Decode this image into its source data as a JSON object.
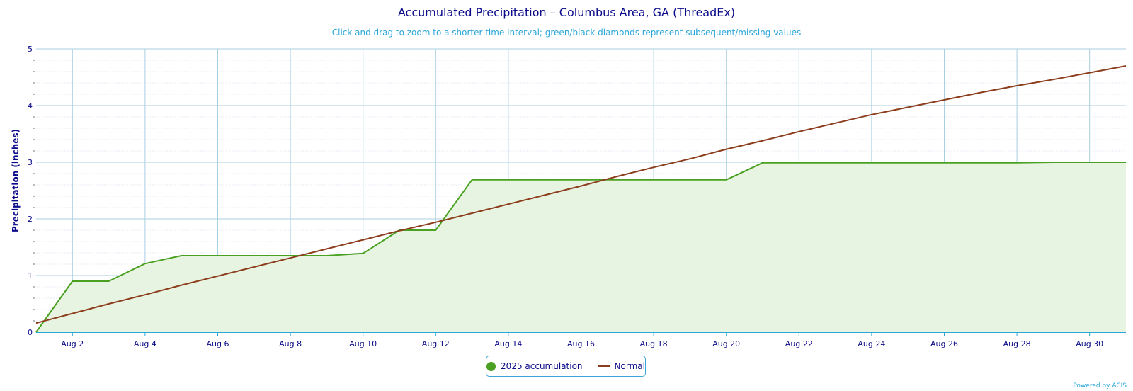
{
  "colors": {
    "accumulation": "#4aa121",
    "accumulation_fill": "#e8f4e2",
    "normal": "#8b3d1c",
    "grid": "#a9cfe2",
    "minor_grid": "#e6eef4",
    "axis": "#2aa6d9",
    "text": "#0b0b8a"
  },
  "chart_data": {
    "type": "area",
    "title": "Accumulated Precipitation – Columbus Area, GA (ThreadEx)",
    "subtitle": "Click and drag to zoom to a shorter time interval; green/black diamonds represent subsequent/missing values",
    "xlabel": "",
    "ylabel": "Precipitation (inches)",
    "xlim": [
      "Aug 1",
      "Aug 31"
    ],
    "ylim": [
      0,
      5
    ],
    "yticks": [
      0,
      1,
      2,
      3,
      4,
      5
    ],
    "xtick_labels": [
      "Aug 2",
      "Aug 4",
      "Aug 6",
      "Aug 8",
      "Aug 10",
      "Aug 12",
      "Aug 14",
      "Aug 16",
      "Aug 18",
      "Aug 20",
      "Aug 22",
      "Aug 24",
      "Aug 26",
      "Aug 28",
      "Aug 30"
    ],
    "grid": true,
    "legend_position": "bottom-center",
    "x": [
      "Aug 1",
      "Aug 2",
      "Aug 3",
      "Aug 4",
      "Aug 5",
      "Aug 6",
      "Aug 7",
      "Aug 8",
      "Aug 9",
      "Aug 10",
      "Aug 11",
      "Aug 12",
      "Aug 13",
      "Aug 14",
      "Aug 15",
      "Aug 16",
      "Aug 17",
      "Aug 18",
      "Aug 19",
      "Aug 20",
      "Aug 21",
      "Aug 22",
      "Aug 23",
      "Aug 24",
      "Aug 25",
      "Aug 26",
      "Aug 27",
      "Aug 28",
      "Aug 29",
      "Aug 30",
      "Aug 31"
    ],
    "series": [
      {
        "name": "2025 accumulation",
        "type": "area",
        "values": [
          0.0,
          0.9,
          0.9,
          1.21,
          1.35,
          1.35,
          1.35,
          1.35,
          1.35,
          1.39,
          1.8,
          1.8,
          2.69,
          2.69,
          2.69,
          2.69,
          2.69,
          2.69,
          2.69,
          2.69,
          2.99,
          2.99,
          2.99,
          2.99,
          2.99,
          2.99,
          2.99,
          2.99,
          3.0,
          3.0,
          3.0
        ]
      },
      {
        "name": "Normal",
        "type": "line",
        "values": [
          0.16,
          0.33,
          0.5,
          0.66,
          0.83,
          0.99,
          1.15,
          1.31,
          1.47,
          1.63,
          1.79,
          1.94,
          2.1,
          2.26,
          2.42,
          2.58,
          2.75,
          2.91,
          3.06,
          3.23,
          3.38,
          3.54,
          3.69,
          3.84,
          3.97,
          4.1,
          4.23,
          4.35,
          4.46,
          4.58,
          4.7
        ]
      }
    ]
  },
  "credit": "Powered by ACIS"
}
